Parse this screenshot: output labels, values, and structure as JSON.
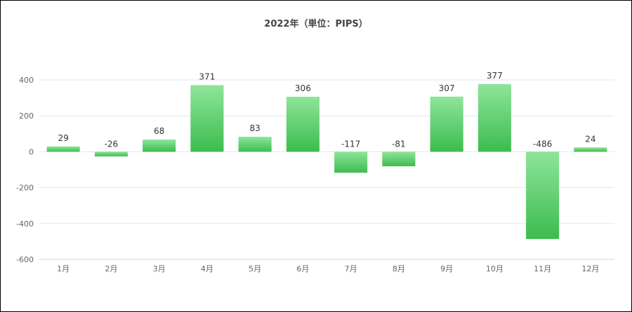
{
  "chart_data": {
    "type": "bar",
    "title": "2022年（単位：PIPS）",
    "categories": [
      "1月",
      "2月",
      "3月",
      "4月",
      "5月",
      "6月",
      "7月",
      "8月",
      "9月",
      "10月",
      "11月",
      "12月"
    ],
    "values": [
      29,
      -26,
      68,
      371,
      83,
      306,
      -117,
      -81,
      307,
      377,
      -486,
      24
    ],
    "ylim": [
      -600,
      400
    ],
    "yticks": [
      400,
      200,
      0,
      -200,
      -400,
      -600
    ],
    "grid": true,
    "colors": {
      "bar_top": "#8ee59a",
      "bar_bottom": "#3cbc4e",
      "grid": "#e2e6f0",
      "axis": "#d0d4de"
    }
  }
}
